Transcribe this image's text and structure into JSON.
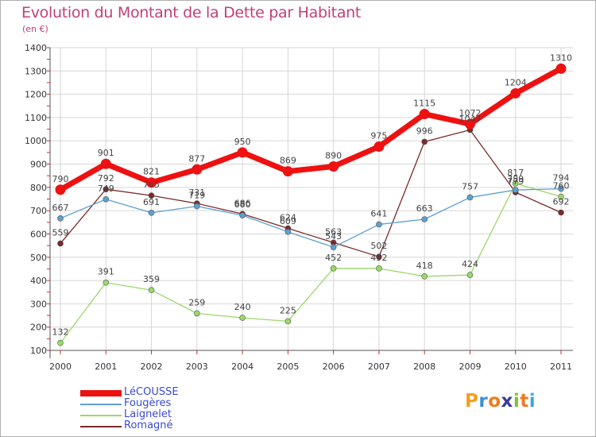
{
  "header": {
    "title": "Evolution du Montant de la Dette par Habitant",
    "unit": "(en €)"
  },
  "logo": {
    "letters": [
      "P",
      "r",
      "o",
      "x",
      "i",
      "t",
      "i"
    ],
    "colors": [
      "#f0a020",
      "#3a8fd8",
      "#f07a20",
      "#3a3a9a",
      "#7ac040",
      "#f07a20",
      "#3aa8d8"
    ]
  },
  "chart_data": {
    "type": "line",
    "categories": [
      "2000",
      "2001",
      "2002",
      "2003",
      "2004",
      "2005",
      "2006",
      "2007",
      "2008",
      "2009",
      "2010",
      "2011"
    ],
    "ylim": [
      100,
      1400
    ],
    "yticks": [
      100,
      200,
      300,
      400,
      500,
      600,
      700,
      800,
      900,
      1000,
      1100,
      1200,
      1300,
      1400
    ],
    "grid": true,
    "series": [
      {
        "name": "LéCOUSSE",
        "color": "#ee1111",
        "values": [
          790,
          901,
          821,
          877,
          950,
          869,
          890,
          975,
          1115,
          1072,
          1204,
          1310
        ]
      },
      {
        "name": "Fougères",
        "color": "#5e9fd0",
        "values": [
          667,
          749,
          691,
          719,
          680,
          609,
          543,
          641,
          663,
          757,
          789,
          794
        ]
      },
      {
        "name": "Laignelet",
        "color": "#9ad86a",
        "values": [
          132,
          391,
          359,
          259,
          240,
          225,
          452,
          452,
          418,
          424,
          817,
          760
        ]
      },
      {
        "name": "Romagné",
        "color": "#7a2a2a",
        "values": [
          559,
          792,
          765,
          731,
          686,
          624,
          563,
          502,
          996,
          1047,
          779,
          692
        ]
      }
    ]
  }
}
